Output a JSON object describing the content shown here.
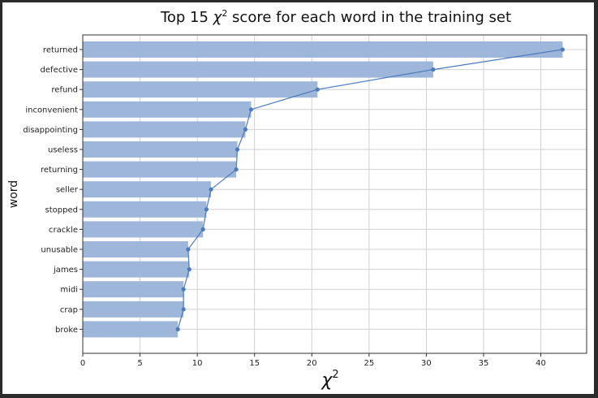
{
  "chart_data": {
    "type": "bar",
    "orientation": "horizontal",
    "title_main": "Top 15 ",
    "title_symbol": "χ",
    "title_sup": "2",
    "title_rest": " score for each word in the training set",
    "xlabel_symbol": "χ",
    "xlabel_sup": "2",
    "ylabel": "word",
    "categories": [
      "returned",
      "defective",
      "refund",
      "inconvenient",
      "disappointing",
      "useless",
      "returning",
      "seller",
      "stopped",
      "crackle",
      "unusable",
      "james",
      "midi",
      "crap",
      "broke"
    ],
    "values": [
      41.9,
      30.6,
      20.5,
      14.7,
      14.2,
      13.5,
      13.4,
      11.2,
      10.8,
      10.5,
      9.2,
      9.3,
      8.8,
      8.8,
      8.3
    ],
    "line_overlay": true,
    "xlim": [
      0,
      44
    ],
    "xticks": [
      0,
      5,
      10,
      15,
      20,
      25,
      30,
      35,
      40
    ],
    "grid": true,
    "bar_color": "#9db6d9",
    "line_color": "#4c7bbd"
  }
}
